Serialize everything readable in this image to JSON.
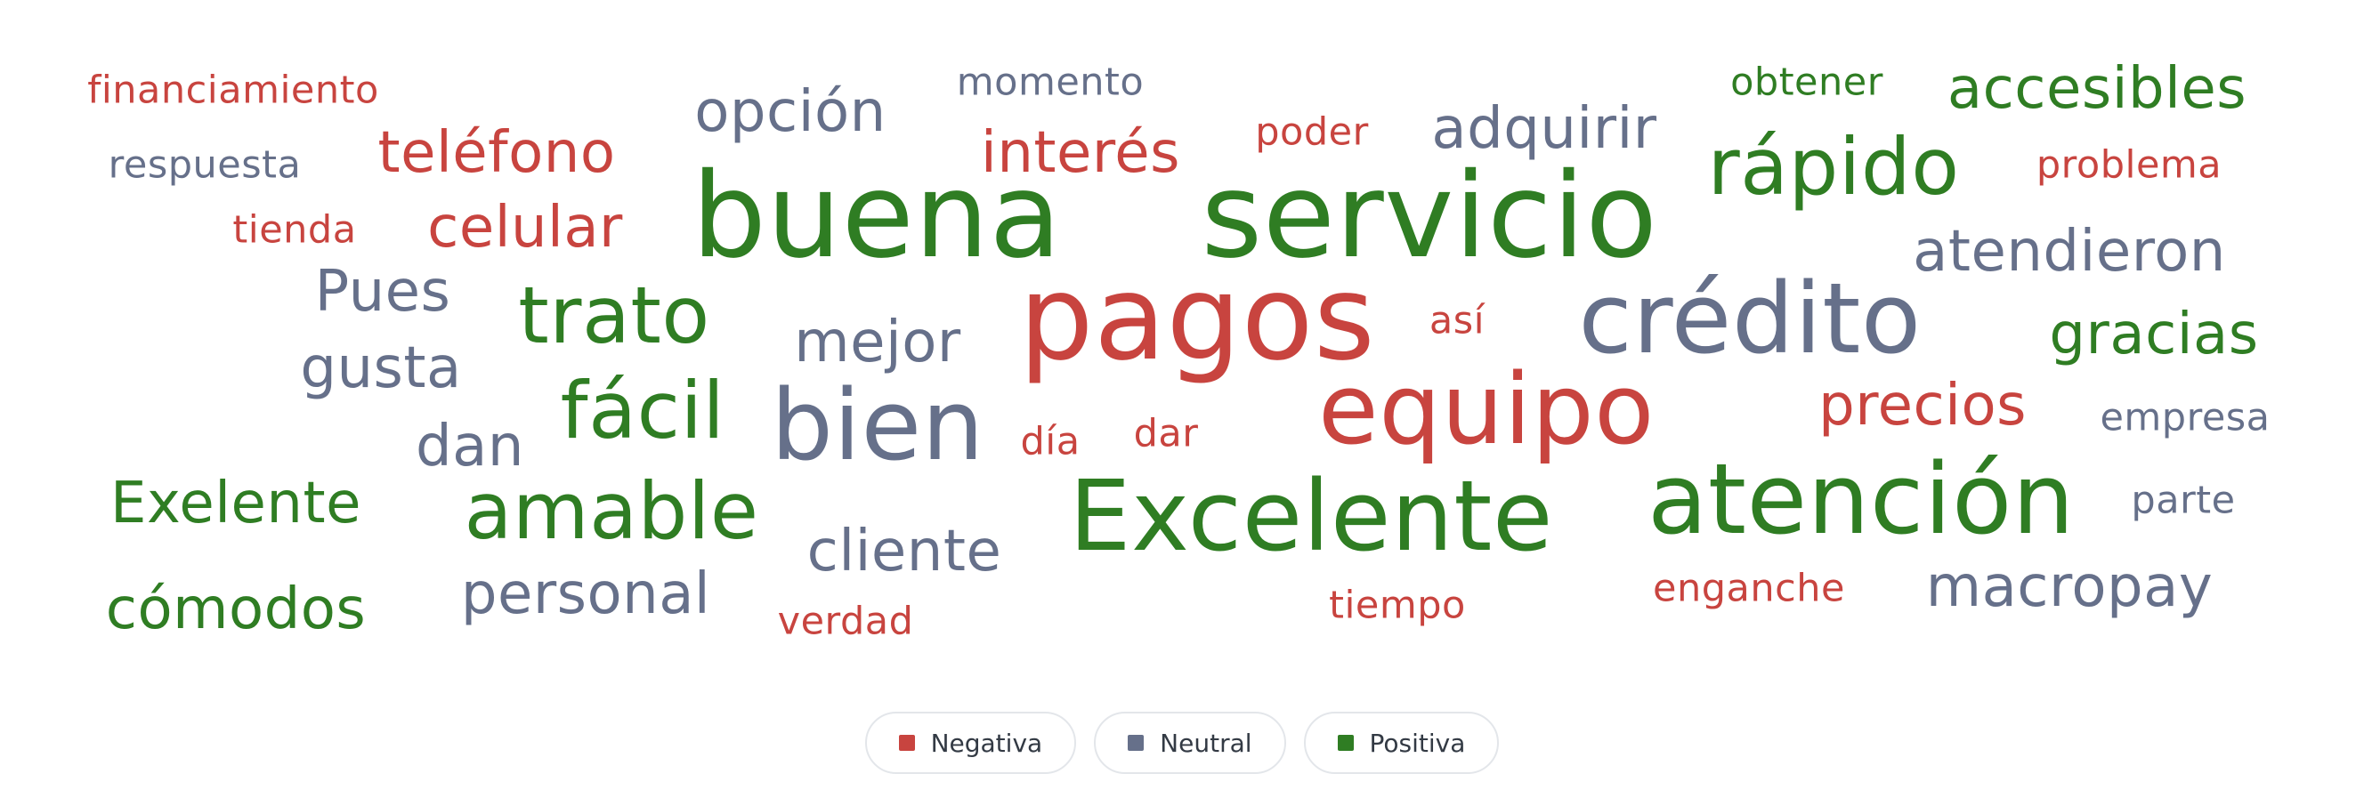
{
  "chart_data": {
    "type": "wordcloud",
    "colors": {
      "Negativa": "#c8443f",
      "Neutral": "#66708a",
      "Positiva": "#2f7d23"
    },
    "legend": [
      {
        "label": "Negativa",
        "color": "#c8443f"
      },
      {
        "label": "Neutral",
        "color": "#66708a"
      },
      {
        "label": "Positiva",
        "color": "#2f7d23"
      }
    ],
    "words": [
      {
        "text": "financiamiento",
        "sentiment": "Negativa",
        "weight": 1
      },
      {
        "text": "momento",
        "sentiment": "Neutral",
        "weight": 1
      },
      {
        "text": "obtener",
        "sentiment": "Positiva",
        "weight": 1
      },
      {
        "text": "accesibles",
        "sentiment": "Positiva",
        "weight": 3
      },
      {
        "text": "opción",
        "sentiment": "Neutral",
        "weight": 3
      },
      {
        "text": "poder",
        "sentiment": "Negativa",
        "weight": 1
      },
      {
        "text": "adquirir",
        "sentiment": "Neutral",
        "weight": 3
      },
      {
        "text": "respuesta",
        "sentiment": "Neutral",
        "weight": 1
      },
      {
        "text": "teléfono",
        "sentiment": "Negativa",
        "weight": 3
      },
      {
        "text": "interés",
        "sentiment": "Negativa",
        "weight": 3
      },
      {
        "text": "rápido",
        "sentiment": "Positiva",
        "weight": 5
      },
      {
        "text": "problema",
        "sentiment": "Negativa",
        "weight": 1
      },
      {
        "text": "buena",
        "sentiment": "Positiva",
        "weight": 10
      },
      {
        "text": "servicio",
        "sentiment": "Positiva",
        "weight": 10
      },
      {
        "text": "tienda",
        "sentiment": "Negativa",
        "weight": 1
      },
      {
        "text": "celular",
        "sentiment": "Negativa",
        "weight": 3
      },
      {
        "text": "atendieron",
        "sentiment": "Neutral",
        "weight": 3
      },
      {
        "text": "Pues",
        "sentiment": "Neutral",
        "weight": 3
      },
      {
        "text": "trato",
        "sentiment": "Positiva",
        "weight": 5
      },
      {
        "text": "pagos",
        "sentiment": "Negativa",
        "weight": 10
      },
      {
        "text": "crédito",
        "sentiment": "Neutral",
        "weight": 8
      },
      {
        "text": "así",
        "sentiment": "Negativa",
        "weight": 1
      },
      {
        "text": "gracias",
        "sentiment": "Positiva",
        "weight": 3
      },
      {
        "text": "mejor",
        "sentiment": "Neutral",
        "weight": 3
      },
      {
        "text": "gusta",
        "sentiment": "Neutral",
        "weight": 3
      },
      {
        "text": "fácil",
        "sentiment": "Positiva",
        "weight": 5
      },
      {
        "text": "bien",
        "sentiment": "Neutral",
        "weight": 8
      },
      {
        "text": "equipo",
        "sentiment": "Negativa",
        "weight": 8
      },
      {
        "text": "precios",
        "sentiment": "Negativa",
        "weight": 3
      },
      {
        "text": "empresa",
        "sentiment": "Neutral",
        "weight": 1
      },
      {
        "text": "día",
        "sentiment": "Negativa",
        "weight": 1
      },
      {
        "text": "dar",
        "sentiment": "Negativa",
        "weight": 1
      },
      {
        "text": "dan",
        "sentiment": "Neutral",
        "weight": 3
      },
      {
        "text": "Exelente",
        "sentiment": "Positiva",
        "weight": 3
      },
      {
        "text": "amable",
        "sentiment": "Positiva",
        "weight": 5
      },
      {
        "text": "Excelente",
        "sentiment": "Positiva",
        "weight": 8
      },
      {
        "text": "atención",
        "sentiment": "Positiva",
        "weight": 8
      },
      {
        "text": "parte",
        "sentiment": "Neutral",
        "weight": 1
      },
      {
        "text": "cliente",
        "sentiment": "Neutral",
        "weight": 3
      },
      {
        "text": "cómodos",
        "sentiment": "Positiva",
        "weight": 3
      },
      {
        "text": "personal",
        "sentiment": "Neutral",
        "weight": 3
      },
      {
        "text": "tiempo",
        "sentiment": "Negativa",
        "weight": 1
      },
      {
        "text": "enganche",
        "sentiment": "Negativa",
        "weight": 1
      },
      {
        "text": "macropay",
        "sentiment": "Neutral",
        "weight": 3
      },
      {
        "text": "verdad",
        "sentiment": "Negativa",
        "weight": 1
      }
    ]
  }
}
